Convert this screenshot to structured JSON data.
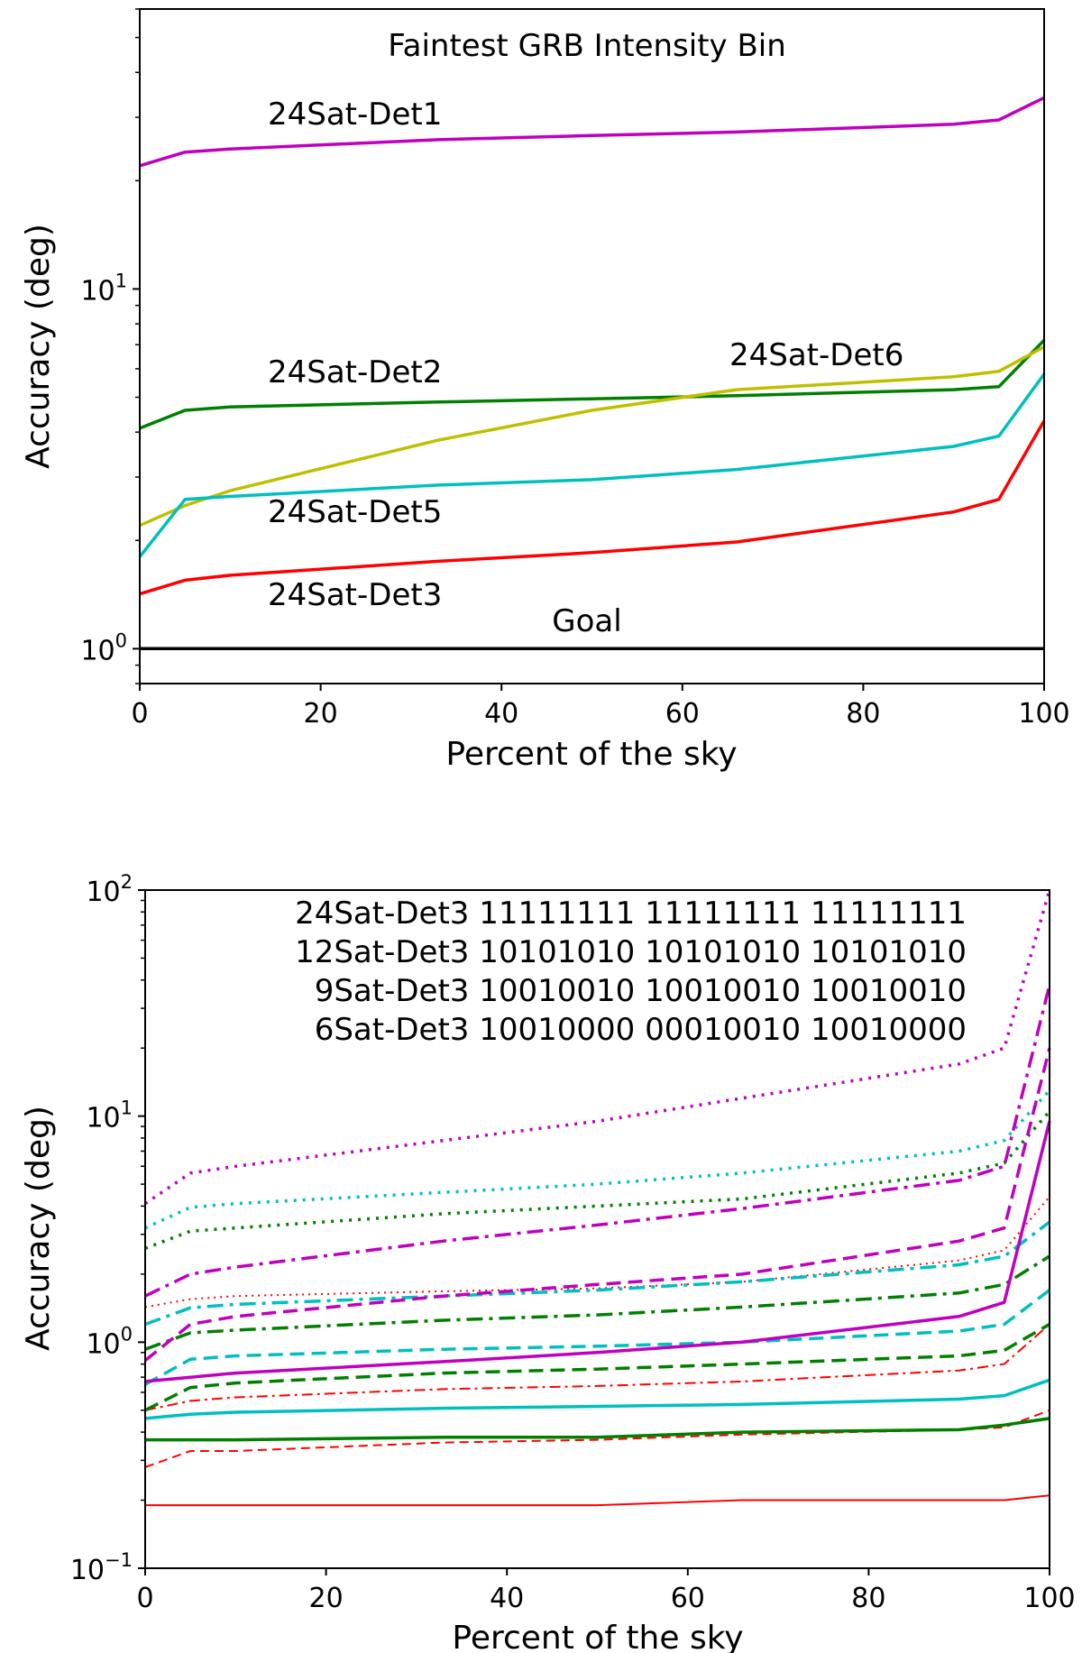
{
  "chart_data": [
    {
      "type": "line",
      "title": "Faintest GRB Intensity Bin",
      "xlabel": "Percent of the sky",
      "ylabel": "Accuracy (deg)",
      "xlim": [
        0,
        100
      ],
      "ylim": [
        0.8,
        60
      ],
      "yscale": "log",
      "grid": false,
      "xticks": [
        "0",
        "20",
        "40",
        "60",
        "80",
        "100"
      ],
      "yticks": [
        {
          "value": 1,
          "base": "10",
          "exp": "0"
        },
        {
          "value": 10,
          "base": "10",
          "exp": "1"
        }
      ],
      "series": [
        {
          "name": "24Sat-Det1",
          "color": "#bf00bf",
          "style": "solid",
          "x": [
            0,
            5,
            10,
            33,
            50,
            66,
            90,
            95,
            100
          ],
          "y": [
            22,
            24,
            24.5,
            26,
            26.7,
            27.3,
            28.7,
            29.5,
            34
          ]
        },
        {
          "name": "24Sat-Det2",
          "color": "#007f00",
          "style": "solid",
          "x": [
            0,
            5,
            10,
            33,
            50,
            66,
            90,
            95,
            100
          ],
          "y": [
            4.1,
            4.6,
            4.7,
            4.85,
            4.95,
            5.05,
            5.25,
            5.35,
            7.2
          ]
        },
        {
          "name": "24Sat-Det6",
          "color": "#bfbf00",
          "style": "solid",
          "x": [
            0,
            5,
            10,
            33,
            50,
            66,
            90,
            95,
            100
          ],
          "y": [
            2.2,
            2.5,
            2.75,
            3.8,
            4.6,
            5.25,
            5.7,
            5.9,
            6.9
          ]
        },
        {
          "name": "24Sat-Det5",
          "color": "#00bfbf",
          "style": "solid",
          "x": [
            0,
            5,
            10,
            33,
            50,
            66,
            90,
            95,
            100
          ],
          "y": [
            1.8,
            2.6,
            2.65,
            2.85,
            2.95,
            3.15,
            3.65,
            3.9,
            5.8
          ]
        },
        {
          "name": "24Sat-Det3",
          "color": "#ff0000",
          "style": "solid",
          "x": [
            0,
            5,
            10,
            33,
            50,
            66,
            90,
            95,
            100
          ],
          "y": [
            1.42,
            1.55,
            1.6,
            1.75,
            1.85,
            1.98,
            2.4,
            2.6,
            4.3
          ]
        },
        {
          "name": "Goal",
          "color": "#000000",
          "style": "solid",
          "x": [
            0,
            100
          ],
          "y": [
            1,
            1
          ]
        }
      ],
      "labels": [
        {
          "text": "24Sat-Det1",
          "color": "#bf00bf"
        },
        {
          "text": "24Sat-Det2",
          "color": "#007f00"
        },
        {
          "text": "24Sat-Det6",
          "color": "#bfbf00"
        },
        {
          "text": "24Sat-Det5",
          "color": "#00bfbf"
        },
        {
          "text": "24Sat-Det3",
          "color": "#ff0000"
        },
        {
          "text": "Goal",
          "color": "#000000"
        }
      ]
    },
    {
      "type": "line",
      "title": "",
      "xlabel": "Percent of the sky",
      "ylabel": "Accuracy (deg)",
      "xlim": [
        0,
        100
      ],
      "ylim": [
        0.1,
        100
      ],
      "yscale": "log",
      "grid": false,
      "xticks": [
        "0",
        "20",
        "40",
        "60",
        "80",
        "100"
      ],
      "yticks": [
        {
          "value": 0.1,
          "base": "10",
          "exp": "−1"
        },
        {
          "value": 1,
          "base": "10",
          "exp": "0"
        },
        {
          "value": 10,
          "base": "10",
          "exp": "1"
        },
        {
          "value": 100,
          "base": "10",
          "exp": "2"
        }
      ],
      "legend_text": [
        {
          "text": "24Sat-Det3 11111111 11111111 11111111",
          "color": "#ff0000"
        },
        {
          "text": "12Sat-Det3 10101010 10101010 10101010",
          "color": "#007f00"
        },
        {
          "text": "9Sat-Det3 10010010 10010010 10010010",
          "color": "#00bfbf"
        },
        {
          "text": "6Sat-Det3 10010000 00010010 10010000",
          "color": "#bf00bf"
        }
      ],
      "x": [
        0,
        5,
        10,
        33,
        50,
        66,
        90,
        95,
        100
      ],
      "series": [
        {
          "config": "24Sat-Det3",
          "color": "#ff0000",
          "style": "solid",
          "weight": "thin",
          "y": [
            0.19,
            0.19,
            0.19,
            0.19,
            0.19,
            0.2,
            0.2,
            0.2,
            0.21
          ]
        },
        {
          "config": "24Sat-Det3",
          "color": "#ff0000",
          "style": "dashed",
          "weight": "thin",
          "y": [
            0.28,
            0.33,
            0.33,
            0.36,
            0.37,
            0.39,
            0.41,
            0.42,
            0.5
          ]
        },
        {
          "config": "24Sat-Det3",
          "color": "#ff0000",
          "style": "dashdot",
          "weight": "thin",
          "y": [
            0.5,
            0.55,
            0.57,
            0.62,
            0.64,
            0.67,
            0.75,
            0.8,
            1.2
          ]
        },
        {
          "config": "24Sat-Det3",
          "color": "#ff0000",
          "style": "dotted",
          "weight": "thin",
          "y": [
            1.43,
            1.55,
            1.6,
            1.68,
            1.73,
            1.85,
            2.3,
            2.55,
            4.4
          ]
        },
        {
          "config": "12Sat-Det3",
          "color": "#007f00",
          "style": "solid",
          "weight": "thick",
          "y": [
            0.37,
            0.37,
            0.37,
            0.38,
            0.38,
            0.4,
            0.41,
            0.43,
            0.46
          ]
        },
        {
          "config": "12Sat-Det3",
          "color": "#007f00",
          "style": "dashed",
          "weight": "thick",
          "y": [
            0.5,
            0.63,
            0.66,
            0.73,
            0.76,
            0.8,
            0.87,
            0.92,
            1.2
          ]
        },
        {
          "config": "12Sat-Det3",
          "color": "#007f00",
          "style": "dashdot",
          "weight": "thick",
          "y": [
            0.93,
            1.1,
            1.13,
            1.25,
            1.32,
            1.43,
            1.65,
            1.8,
            2.4
          ]
        },
        {
          "config": "12Sat-Det3",
          "color": "#007f00",
          "style": "dotted",
          "weight": "thick",
          "y": [
            2.6,
            3.1,
            3.2,
            3.7,
            4.0,
            4.3,
            5.6,
            6.2,
            10.5
          ]
        },
        {
          "config": "9Sat-Det3",
          "color": "#00bfbf",
          "style": "solid",
          "weight": "thick",
          "y": [
            0.46,
            0.48,
            0.49,
            0.51,
            0.52,
            0.53,
            0.56,
            0.58,
            0.68
          ]
        },
        {
          "config": "9Sat-Det3",
          "color": "#00bfbf",
          "style": "dashed",
          "weight": "thick",
          "y": [
            0.65,
            0.84,
            0.87,
            0.93,
            0.96,
            1.0,
            1.12,
            1.2,
            1.7
          ]
        },
        {
          "config": "9Sat-Det3",
          "color": "#00bfbf",
          "style": "dashdot",
          "weight": "thick",
          "y": [
            1.2,
            1.42,
            1.47,
            1.6,
            1.7,
            1.85,
            2.2,
            2.4,
            3.4
          ]
        },
        {
          "config": "9Sat-Det3",
          "color": "#00bfbf",
          "style": "dotted",
          "weight": "thick",
          "y": [
            3.2,
            3.95,
            4.1,
            4.6,
            5.0,
            5.6,
            7.0,
            7.8,
            13
          ]
        },
        {
          "config": "6Sat-Det3",
          "color": "#bf00bf",
          "style": "solid",
          "weight": "thick",
          "y": [
            0.67,
            0.7,
            0.73,
            0.82,
            0.9,
            1.0,
            1.3,
            1.5,
            9.5
          ]
        },
        {
          "config": "6Sat-Det3",
          "color": "#bf00bf",
          "style": "dashed",
          "weight": "thick",
          "y": [
            0.83,
            1.2,
            1.3,
            1.6,
            1.8,
            2.0,
            2.8,
            3.2,
            20
          ]
        },
        {
          "config": "6Sat-Det3",
          "color": "#bf00bf",
          "style": "dashdot",
          "weight": "thick",
          "y": [
            1.6,
            2.0,
            2.15,
            2.8,
            3.3,
            3.9,
            5.2,
            6.0,
            38
          ]
        },
        {
          "config": "6Sat-Det3",
          "color": "#bf00bf",
          "style": "dotted",
          "weight": "thick",
          "y": [
            4.1,
            5.6,
            6.0,
            7.8,
            9.5,
            12,
            17,
            20,
            100
          ]
        }
      ]
    }
  ]
}
